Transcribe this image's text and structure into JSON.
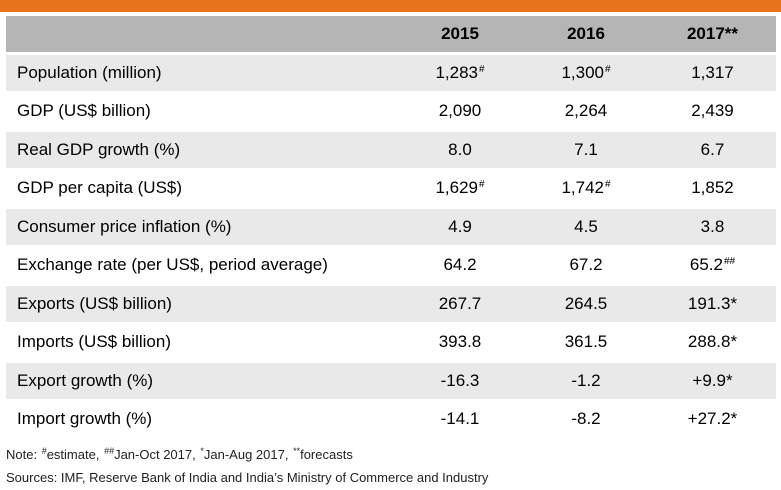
{
  "header": {
    "label": "",
    "years": [
      "2015",
      "2016",
      "2017**"
    ]
  },
  "rows": [
    {
      "label": "Population (million)",
      "v": [
        {
          "t": "1,283",
          "s": "#"
        },
        {
          "t": "1,300",
          "s": "#"
        },
        {
          "t": "1,317",
          "s": ""
        }
      ]
    },
    {
      "label": "GDP (US$ billion)",
      "v": [
        {
          "t": "2,090",
          "s": ""
        },
        {
          "t": "2,264",
          "s": ""
        },
        {
          "t": "2,439",
          "s": ""
        }
      ]
    },
    {
      "label": "Real GDP growth (%)",
      "v": [
        {
          "t": "8.0",
          "s": ""
        },
        {
          "t": "7.1",
          "s": ""
        },
        {
          "t": "6.7",
          "s": ""
        }
      ]
    },
    {
      "label": "GDP per capita (US$)",
      "v": [
        {
          "t": "1,629",
          "s": "#"
        },
        {
          "t": "1,742",
          "s": "#"
        },
        {
          "t": "1,852",
          "s": ""
        }
      ]
    },
    {
      "label": "Consumer price inflation (%)",
      "v": [
        {
          "t": "4.9",
          "s": ""
        },
        {
          "t": "4.5",
          "s": ""
        },
        {
          "t": "3.8",
          "s": ""
        }
      ]
    },
    {
      "label": "Exchange rate (per US$, period average)",
      "v": [
        {
          "t": "64.2",
          "s": ""
        },
        {
          "t": "67.2",
          "s": ""
        },
        {
          "t": "65.2",
          "s": "##"
        }
      ]
    },
    {
      "label": "Exports (US$ billion)",
      "v": [
        {
          "t": "267.7",
          "s": ""
        },
        {
          "t": "264.5",
          "s": ""
        },
        {
          "t": "191.3*",
          "s": ""
        }
      ]
    },
    {
      "label": "Imports (US$ billion)",
      "v": [
        {
          "t": "393.8",
          "s": ""
        },
        {
          "t": "361.5",
          "s": ""
        },
        {
          "t": "288.8*",
          "s": ""
        }
      ]
    },
    {
      "label": "Export growth (%)",
      "v": [
        {
          "t": "-16.3",
          "s": ""
        },
        {
          "t": "-1.2",
          "s": ""
        },
        {
          "t": "+9.9*",
          "s": ""
        }
      ]
    },
    {
      "label": "Import growth (%)",
      "v": [
        {
          "t": "-14.1",
          "s": ""
        },
        {
          "t": "-8.2",
          "s": ""
        },
        {
          "t": "+27.2*",
          "s": ""
        }
      ]
    }
  ],
  "notes": {
    "prefix": "Note: ",
    "n1_mark": "#",
    "n1_text": "estimate, ",
    "n2_mark": "##",
    "n2_text": "Jan-Oct 2017, ",
    "n3_mark": "*",
    "n3_text": "Jan-Aug 2017, ",
    "n4_mark": "**",
    "n4_text": "forecasts",
    "sources": "Sources: IMF, Reserve Bank of India and India’s Ministry of Commerce and Industry"
  },
  "colors": {
    "accent_bar": "#E8741E",
    "header_bg": "#B5B5B5",
    "shaded_row": "#E9E9E9"
  }
}
